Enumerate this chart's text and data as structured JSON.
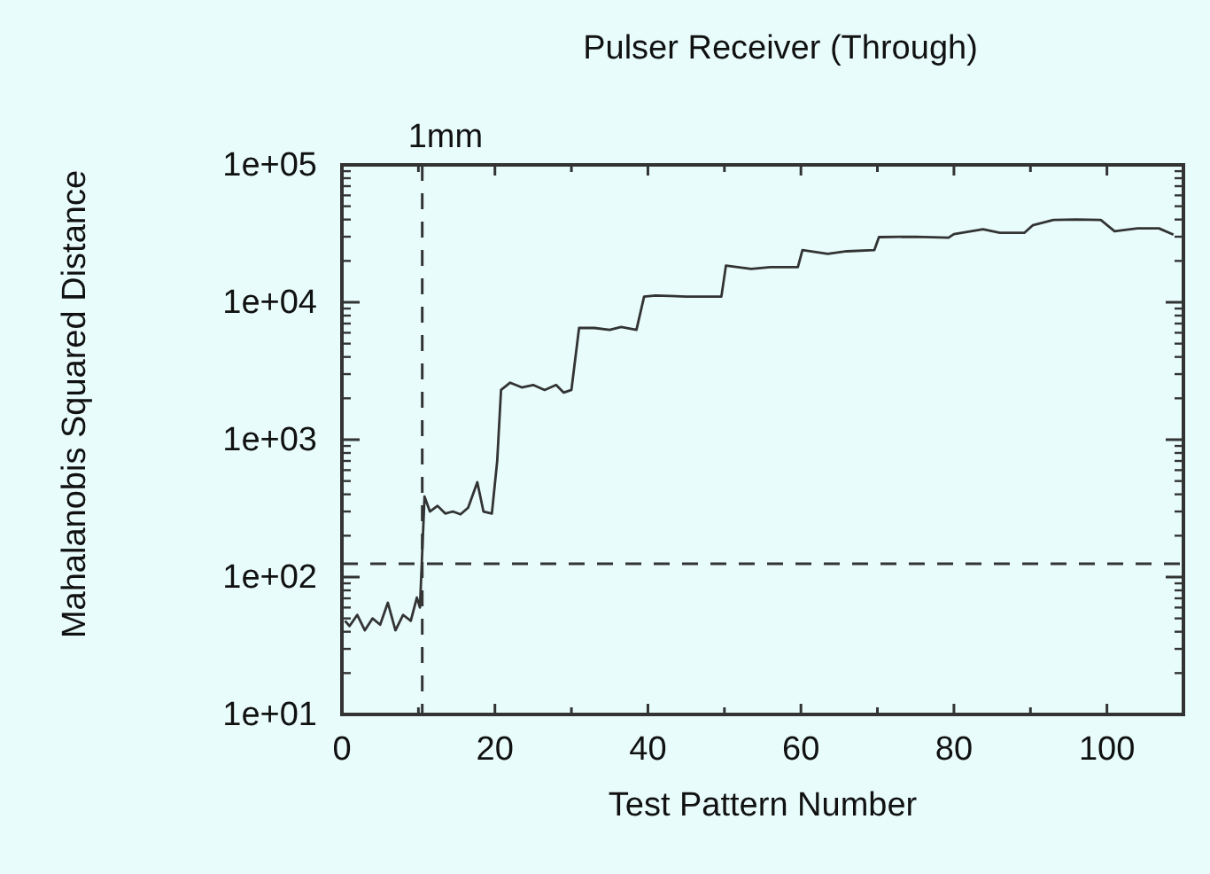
{
  "chart_data": {
    "type": "line",
    "title": "Pulser Receiver (Through)",
    "xlabel": "Test Pattern Number",
    "ylabel": "Mahalanobis Squared Distance",
    "log": "y",
    "grid": false,
    "marker": "none",
    "line_style": "solid",
    "xlim": [
      0,
      110
    ],
    "xticks": [
      0,
      {
        "value": 10,
        "label": null
      },
      20,
      {
        "value": 30,
        "label": null
      },
      40,
      {
        "value": 50,
        "label": null
      },
      60,
      {
        "value": 70,
        "label": null
      },
      80,
      {
        "value": 90,
        "label": null
      },
      100
    ],
    "ylim": [
      10,
      100000
    ],
    "yticks": [
      {
        "value": 10,
        "label": "1e+01"
      },
      {
        "value": 100,
        "label": "1e+02"
      },
      {
        "value": 1000,
        "label": "1e+03"
      },
      {
        "value": 10000,
        "label": "1e+04"
      },
      {
        "value": 100000,
        "label": "1e+05"
      }
    ],
    "ref_lines": [
      {
        "axis": "x",
        "value": 10.5,
        "label": "1mm",
        "line_style": "dashed",
        "color": "#333333"
      },
      {
        "axis": "y",
        "value": 125,
        "line_style": "dashed",
        "color": "#333333"
      }
    ],
    "series": [
      {
        "color": "#333333",
        "x": [
          0.4,
          1,
          2,
          3,
          4,
          5,
          6,
          7,
          8,
          9,
          9.8,
          10.2,
          10.8,
          11.5,
          12.5,
          13.5,
          14.5,
          15.5,
          16.5,
          17.7,
          18.5,
          19.6,
          20.3,
          20.8,
          22,
          23.5,
          25,
          26.5,
          28,
          29,
          30,
          31,
          33,
          35,
          36.5,
          38.5,
          39.5,
          41,
          45,
          49.6,
          50.2,
          53.5,
          56,
          59.6,
          60.2,
          63.5,
          66,
          69.6,
          70.2,
          75,
          79.3,
          80,
          83.8,
          86,
          89.2,
          90.3,
          93,
          96,
          99.2,
          101,
          104,
          106.8,
          108.7
        ],
        "values": [
          48,
          44,
          53,
          41,
          50,
          45,
          65,
          41,
          53,
          48,
          71,
          60,
          385,
          300,
          330,
          290,
          300,
          286,
          320,
          490,
          300,
          290,
          700,
          2300,
          2600,
          2400,
          2500,
          2300,
          2500,
          2200,
          2300,
          6500,
          6500,
          6300,
          6600,
          6300,
          11000,
          11200,
          11000,
          11000,
          18500,
          17500,
          18000,
          18000,
          24000,
          22500,
          23500,
          24000,
          29800,
          30000,
          29500,
          31300,
          34000,
          32000,
          32000,
          36300,
          39700,
          40000,
          39700,
          32900,
          34500,
          34500,
          31000
        ]
      }
    ]
  }
}
